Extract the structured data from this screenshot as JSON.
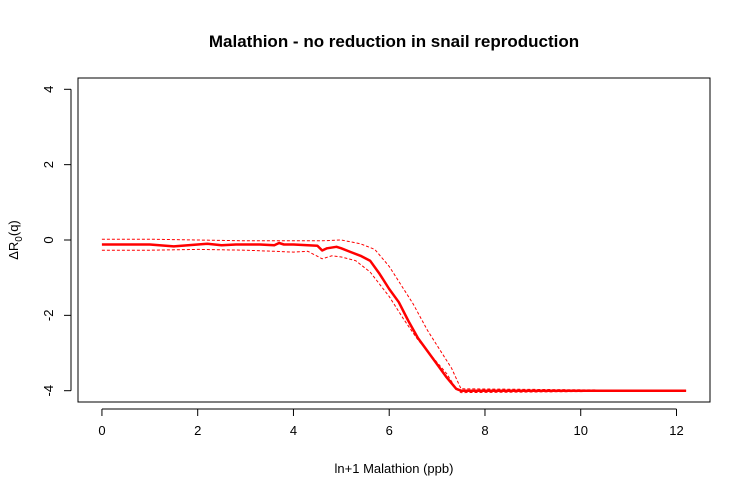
{
  "chart_data": {
    "type": "line",
    "title": "Malathion - no reduction in snail reproduction",
    "xlabel": "ln+1 Malathion (ppb)",
    "ylabel_main": "ΔR",
    "ylabel_sub": "0",
    "ylabel_tail": "(q)",
    "xlim": [
      -0.5,
      12.7
    ],
    "ylim": [
      -4.3,
      4.3
    ],
    "x_ticks": [
      0,
      2,
      4,
      6,
      8,
      10,
      12
    ],
    "y_ticks": [
      -4,
      -2,
      0,
      2,
      4
    ],
    "x_tick_labels": [
      "0",
      "2",
      "4",
      "6",
      "8",
      "10",
      "12"
    ],
    "y_tick_labels": [
      "-4",
      "-2",
      "0",
      "2",
      "4"
    ],
    "grid": false,
    "colors": {
      "line": "#ff0000"
    },
    "series": [
      {
        "role": "estimate",
        "style": "solid",
        "x": [
          0,
          1.0,
          1.5,
          2.0,
          2.2,
          2.5,
          2.8,
          3.0,
          3.3,
          3.6,
          3.7,
          3.8,
          4.0,
          4.3,
          4.5,
          4.6,
          4.7,
          4.9,
          5.0,
          5.2,
          5.4,
          5.6,
          5.8,
          6.0,
          6.2,
          6.4,
          6.6,
          6.8,
          7.0,
          7.2,
          7.4,
          7.5,
          12.2
        ],
        "y": [
          -0.12,
          -0.12,
          -0.17,
          -0.12,
          -0.1,
          -0.14,
          -0.12,
          -0.12,
          -0.12,
          -0.14,
          -0.08,
          -0.12,
          -0.12,
          -0.14,
          -0.15,
          -0.28,
          -0.22,
          -0.18,
          -0.22,
          -0.32,
          -0.42,
          -0.55,
          -0.9,
          -1.3,
          -1.65,
          -2.15,
          -2.6,
          -2.95,
          -3.3,
          -3.65,
          -3.95,
          -4.0,
          -4.0
        ]
      },
      {
        "role": "upper",
        "style": "dashed",
        "x": [
          0,
          1.0,
          2.0,
          3.0,
          4.0,
          4.6,
          5.0,
          5.4,
          5.7,
          6.0,
          6.2,
          6.5,
          6.8,
          7.0,
          7.3,
          7.5,
          12.2
        ],
        "y": [
          0.02,
          0.02,
          0.0,
          -0.02,
          -0.02,
          -0.02,
          0.0,
          -0.1,
          -0.25,
          -0.7,
          -1.1,
          -1.7,
          -2.4,
          -2.8,
          -3.4,
          -3.95,
          -4.0
        ]
      },
      {
        "role": "lower",
        "style": "dashed",
        "x": [
          0,
          1.0,
          2.0,
          3.0,
          3.6,
          4.0,
          4.3,
          4.6,
          4.8,
          5.0,
          5.3,
          5.6,
          6.0,
          6.3,
          6.6,
          6.9,
          7.2,
          7.4,
          7.5,
          12.2
        ],
        "y": [
          -0.27,
          -0.27,
          -0.25,
          -0.27,
          -0.3,
          -0.32,
          -0.3,
          -0.5,
          -0.42,
          -0.45,
          -0.55,
          -0.85,
          -1.5,
          -2.1,
          -2.65,
          -3.1,
          -3.55,
          -3.95,
          -4.05,
          -4.0
        ]
      }
    ]
  }
}
